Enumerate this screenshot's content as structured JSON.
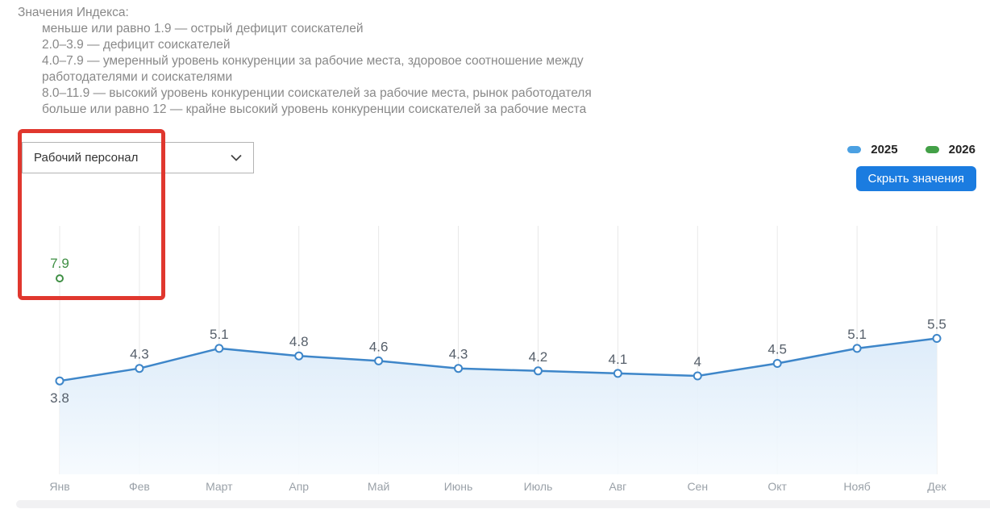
{
  "index_legend": {
    "title": "Значения Индекса:",
    "items": [
      "меньше или равно 1.9 — острый дефицит соискателей",
      "2.0–3.9 — дефицит соискателей",
      "4.0–7.9 — умеренный уровень конкуренции за рабочие места, здоровое соотношение между работодателями и соискателями",
      "8.0–11.9 — высокий уровень конкуренции соискателей за рабочие места, рынок работодателя",
      "больше или равно 12 — крайне высокий уровень конкуренции соискателей за рабочие места"
    ]
  },
  "controls": {
    "profession_select": {
      "value": "Рабочий персонал"
    },
    "hide_values_button_label": "Скрыть значения"
  },
  "legend": {
    "items": [
      {
        "label": "2025",
        "color": "#4BA0E2"
      },
      {
        "label": "2026",
        "color": "#43A047"
      }
    ]
  },
  "highlight_box": {
    "color": "#E0372E"
  },
  "chart_data": {
    "type": "line",
    "x": [
      "Янв",
      "Фев",
      "Март",
      "Апр",
      "Май",
      "Июнь",
      "Июль",
      "Авг",
      "Сен",
      "Окт",
      "Нояб",
      "Дек"
    ],
    "series": [
      {
        "name": "2025",
        "color": "#3E86C9",
        "values": [
          3.8,
          4.3,
          5.1,
          4.8,
          4.6,
          4.3,
          4.2,
          4.1,
          4,
          4.5,
          5.1,
          5.5
        ],
        "labels": [
          "3.8",
          "4.3",
          "5.1",
          "4.8",
          "4.6",
          "4.3",
          "4.2",
          "4.1",
          "4",
          "4.5",
          "5.1",
          "5.5"
        ],
        "area_fill": true
      },
      {
        "name": "2026",
        "color": "#3F8F44",
        "values": [
          7.9,
          null,
          null,
          null,
          null,
          null,
          null,
          null,
          null,
          null,
          null,
          null
        ],
        "labels": [
          "7.9",
          null,
          null,
          null,
          null,
          null,
          null,
          null,
          null,
          null,
          null,
          null
        ],
        "area_fill": false
      }
    ],
    "ylim": [
      0,
      10
    ],
    "grid": "vertical",
    "legend_position": "top-right",
    "value_labels": true
  }
}
